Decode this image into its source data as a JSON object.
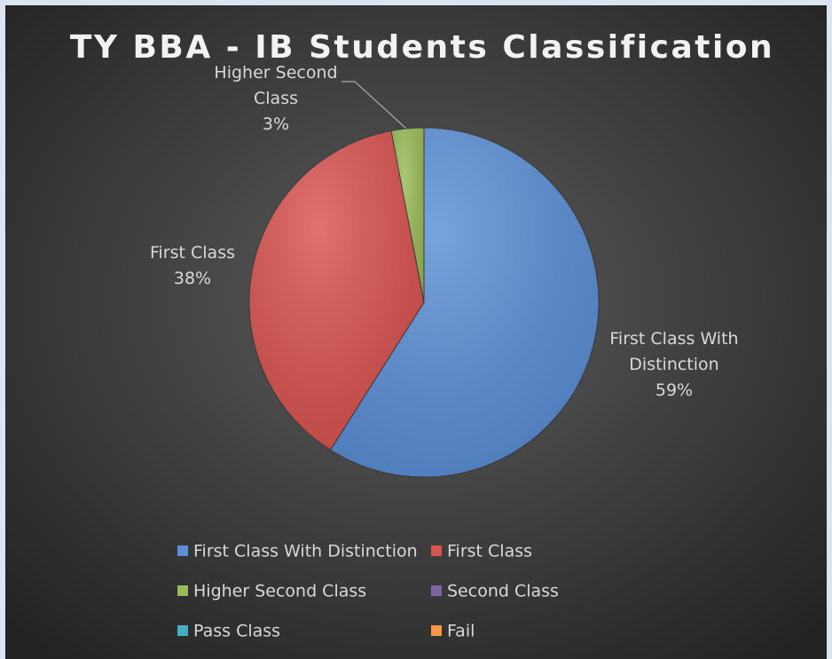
{
  "chart_data": {
    "type": "pie",
    "title": "TY BBA - IB Students Classification",
    "categories": [
      "First Class With Distinction",
      "First Class",
      "Higher Second Class",
      "Second Class",
      "Pass Class",
      "Fail"
    ],
    "values": [
      59,
      38,
      3,
      0,
      0,
      0
    ],
    "value_labels": [
      "59%",
      "38%",
      "3%",
      null,
      null,
      null
    ],
    "colors": [
      "#5b8fd6",
      "#d9534f",
      "#9bbb59",
      "#8064a2",
      "#4bacc6",
      "#f79646"
    ],
    "legend": "bottom"
  }
}
